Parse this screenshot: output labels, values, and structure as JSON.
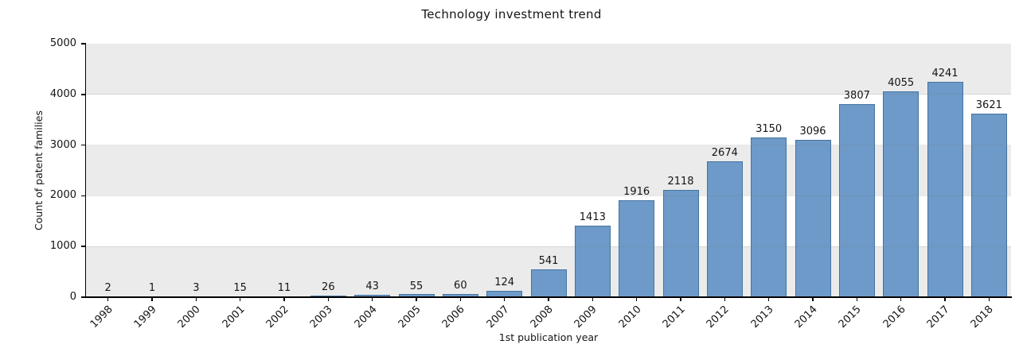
{
  "chart_data": {
    "type": "bar",
    "title": "Technology investment trend",
    "xlabel": "1st publication year",
    "ylabel": "Count of patent families",
    "categories": [
      "1998",
      "1999",
      "2000",
      "2001",
      "2002",
      "2003",
      "2004",
      "2005",
      "2006",
      "2007",
      "2008",
      "2009",
      "2010",
      "2011",
      "2012",
      "2013",
      "2014",
      "2015",
      "2016",
      "2017",
      "2018"
    ],
    "values": [
      2,
      1,
      3,
      15,
      11,
      26,
      43,
      55,
      60,
      124,
      541,
      1413,
      1916,
      2118,
      2674,
      3150,
      3096,
      3807,
      4055,
      4241,
      3621
    ],
    "ylim": [
      0,
      5000
    ],
    "yticks": [
      0,
      1000,
      2000,
      3000,
      4000,
      5000
    ],
    "bar_value_labels_shown": true,
    "legend_position": "none",
    "background_bands": "alternating gray/white per 1000, gray starting at 0",
    "colors": {
      "bar_fill": "#6d9ac8",
      "bar_border": "#45749f",
      "band_gray": "#ebebeb",
      "axis_line": "#000000",
      "text": "#141414",
      "figure_background": "#ffffff"
    }
  }
}
